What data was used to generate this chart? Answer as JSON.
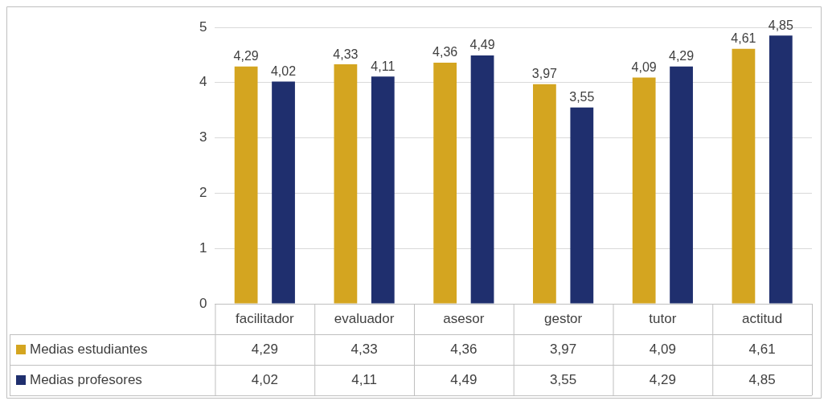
{
  "chart_data": {
    "type": "bar",
    "categories": [
      "facilitador",
      "evaluador",
      "asesor",
      "gestor",
      "tutor",
      "actitud"
    ],
    "series": [
      {
        "name": "Medias estudiantes",
        "color": "#d4a520",
        "values": [
          4.29,
          4.33,
          4.36,
          3.97,
          4.09,
          4.61
        ],
        "value_labels": [
          "4,29",
          "4,33",
          "4,36",
          "3,97",
          "4,09",
          "4,61"
        ]
      },
      {
        "name": "Medias profesores",
        "color": "#1f2f6e",
        "values": [
          4.02,
          4.11,
          4.49,
          3.55,
          4.29,
          4.85
        ],
        "value_labels": [
          "4,02",
          "4,11",
          "4,49",
          "3,55",
          "4,29",
          "4,85"
        ]
      }
    ],
    "ylim": [
      0,
      5
    ],
    "yticks": [
      0,
      1,
      2,
      3,
      4,
      5
    ],
    "grid": "y",
    "legend": "bottom"
  }
}
